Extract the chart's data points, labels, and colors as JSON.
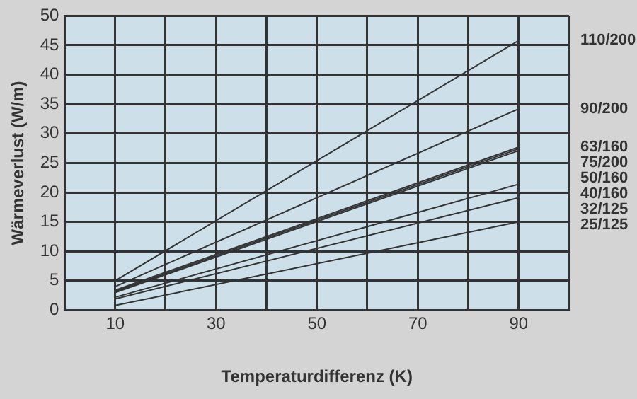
{
  "chart_data": {
    "type": "line",
    "xlabel": "Temperaturdifferenz (K)",
    "ylabel": "Wärmeverlust (W/m)",
    "x": [
      10,
      90
    ],
    "series": [
      {
        "name": "110/200",
        "color": "#333333",
        "values": [
          5,
          45.8
        ]
      },
      {
        "name": "90/200",
        "color": "#333333",
        "values": [
          4,
          34.2
        ]
      },
      {
        "name": "63/160",
        "color": "#333333",
        "values": [
          3.4,
          27.7
        ]
      },
      {
        "name": "75/200",
        "color": "#333333",
        "values": [
          3.2,
          27.4
        ]
      },
      {
        "name": "50/160",
        "color": "#333333",
        "values": [
          3,
          27.1
        ]
      },
      {
        "name": "40/160",
        "color": "#333333",
        "values": [
          2.2,
          21.4
        ]
      },
      {
        "name": "32/125",
        "color": "#333333",
        "values": [
          1.9,
          19.1
        ]
      },
      {
        "name": "25/125",
        "color": "#333333",
        "values": [
          0.8,
          15
        ]
      }
    ],
    "xlim": [
      0,
      100
    ],
    "xticks": [
      {
        "value": 0,
        "label": null
      },
      10,
      {
        "value": 20,
        "label": null
      },
      30,
      {
        "value": 40,
        "label": null
      },
      50,
      {
        "value": 60,
        "label": null
      },
      70,
      {
        "value": 80,
        "label": null
      },
      90,
      {
        "value": 100,
        "label": null
      }
    ],
    "ylim": [
      0,
      50
    ],
    "yticks": [
      0,
      5,
      10,
      15,
      20,
      25,
      30,
      35,
      40,
      45,
      50
    ],
    "grid": true,
    "legend": false,
    "marker": "none",
    "line_style": "solid"
  }
}
